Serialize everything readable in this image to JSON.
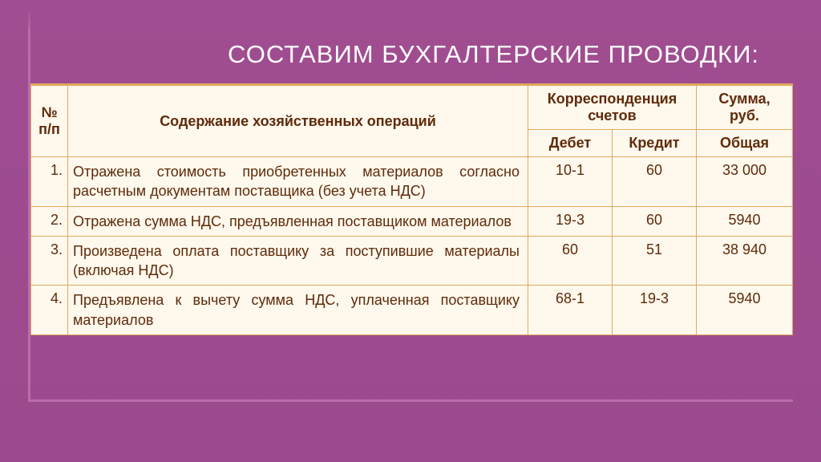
{
  "title": "СОСТАВИМ БУХГАЛТЕРСКИЕ ПРОВОДКИ:",
  "headers": {
    "num": "№ п/п",
    "desc": "Содержание хозяйственных операций",
    "corr": "Корреспонденция счетов",
    "sum": "Сумма, руб.",
    "debit": "Дебет",
    "credit": "Кредит",
    "total": "Общая"
  },
  "rows": [
    {
      "n": "1.",
      "desc": "Отражена стоимость приобретенных материалов согласно расчетным документам поставщика (без учета НДС)",
      "debit": "10-1",
      "credit": "60",
      "sum": "33 000"
    },
    {
      "n": "2.",
      "desc": "Отражена сумма НДС, предъявленная поставщиком материалов",
      "debit": "19-3",
      "credit": "60",
      "sum": "5940"
    },
    {
      "n": "3.",
      "desc": "Произведена оплата поставщику за поступившие материалы (включая НДС)",
      "debit": "60",
      "credit": "51",
      "sum": "38 940"
    },
    {
      "n": "4.",
      "desc": "Предъявлена к вычету сумма НДС, уплаченная поставщику материалов",
      "debit": "68-1",
      "credit": "19-3",
      "sum": "5940"
    }
  ],
  "style": {
    "bg_gradient_from": "#a04d91",
    "bg_gradient_to": "#9c4a8d",
    "frame_border": "#ba6cab",
    "table_bg": "#fff8ed",
    "table_border": "#e2a85b",
    "text_color": "#5e2b0a",
    "title_color": "#ffffff",
    "title_fontsize": 31,
    "header_fontsize": 18,
    "body_fontsize": 18
  }
}
